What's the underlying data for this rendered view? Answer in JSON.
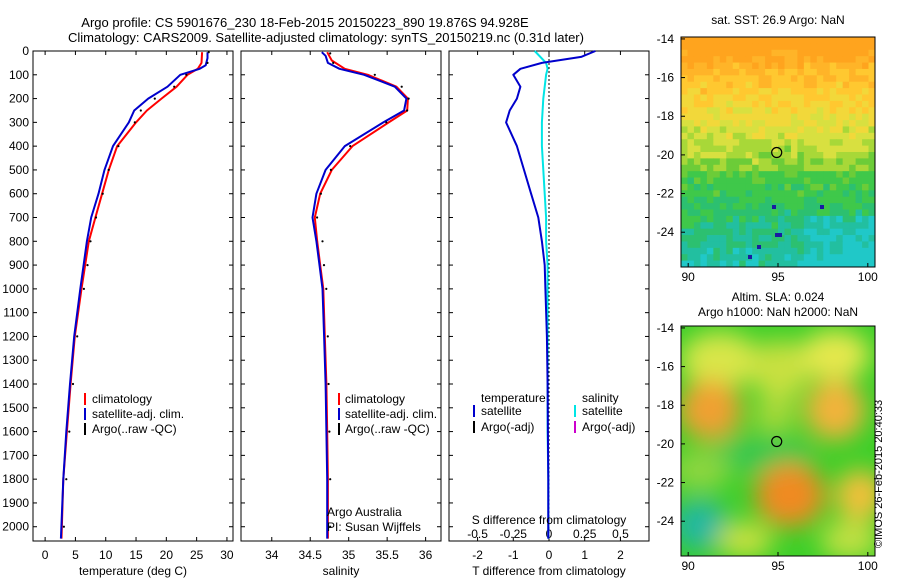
{
  "header": {
    "title_line1": "Argo profile: CS 5901676_230 18-Feb-2015 20150223_890 19.876S 94.928E",
    "title_line2": "Climatology: CARS2009. Satellite-adjusted climatology: synTS_20150219.nc (0.31d later)"
  },
  "stamp": "©IMOS 26-Feb-2015 20:40:33",
  "colors": {
    "climatology": "#ff0000",
    "satellite": "#0000cc",
    "argo": "#000000",
    "salinity_satellite": "#00e5e5",
    "salinity_argo": "#cc00cc"
  },
  "chart_data": [
    {
      "type": "line",
      "id": "temperature",
      "xlabel": "temperature (deg C)",
      "ylabel": "",
      "xlim": [
        -2,
        31
      ],
      "ylim": [
        2060,
        0
      ],
      "xticks": [
        "0",
        "5",
        "10",
        "15",
        "20",
        "25",
        "30"
      ],
      "xtick_values": [
        0,
        5,
        10,
        15,
        20,
        25,
        30
      ],
      "yticks": [
        "0",
        "100",
        "200",
        "300",
        "400",
        "500",
        "600",
        "700",
        "800",
        "900",
        "1000",
        "1100",
        "1200",
        "1300",
        "1400",
        "1500",
        "1600",
        "1700",
        "1800",
        "1900",
        "2000"
      ],
      "ytick_values": [
        0,
        100,
        200,
        300,
        400,
        500,
        600,
        700,
        800,
        900,
        1000,
        1100,
        1200,
        1300,
        1400,
        1500,
        1600,
        1700,
        1800,
        1900,
        2000
      ],
      "legend": [
        "climatology",
        "satellite-adj. clim.",
        "Argo(..raw -QC)"
      ],
      "series": [
        {
          "name": "climatology",
          "depth": [
            5,
            50,
            75,
            100,
            150,
            200,
            250,
            300,
            400,
            500,
            600,
            700,
            800,
            1000,
            1200,
            1400,
            1600,
            1800,
            2050
          ],
          "values": [
            25.9,
            25.8,
            25.2,
            23.5,
            21.7,
            19.2,
            16.8,
            15.0,
            11.9,
            10.5,
            9.4,
            8.3,
            7.2,
            6.0,
            4.9,
            4.2,
            3.6,
            3.0,
            2.7
          ]
        },
        {
          "name": "satellite-adj. clim.",
          "depth": [
            5,
            30,
            60,
            75,
            100,
            150,
            200,
            250,
            300,
            400,
            500,
            600,
            700,
            800,
            1000,
            1200,
            1400,
            1600,
            1800,
            2050
          ],
          "values": [
            26.8,
            26.8,
            26.5,
            25.5,
            22.3,
            20.2,
            17.0,
            14.7,
            13.8,
            11.2,
            9.8,
            8.8,
            7.6,
            6.9,
            5.8,
            4.8,
            4.1,
            3.5,
            3.0,
            2.6
          ]
        },
        {
          "name": "Argo(..raw -QC)",
          "depth": [
            5,
            50,
            100,
            150,
            200,
            250,
            300,
            400,
            500,
            600,
            700,
            800,
            900,
            1000,
            1200,
            1400,
            1600,
            1800,
            2000
          ],
          "values": [
            26.5,
            26.3,
            22.8,
            20.8,
            17.6,
            15.3,
            14.3,
            11.6,
            10.0,
            9.0,
            7.9,
            7.0,
            6.5,
            5.9,
            4.8,
            4.1,
            3.5,
            3.0,
            2.6
          ]
        }
      ]
    },
    {
      "type": "line",
      "id": "salinity",
      "xlabel": "salinity",
      "ylabel": "",
      "xlim": [
        33.6,
        36.2
      ],
      "ylim": [
        2060,
        0
      ],
      "xticks": [
        "34",
        "34.5",
        "35",
        "35.5",
        "36"
      ],
      "xtick_values": [
        34,
        34.5,
        35,
        35.5,
        36
      ],
      "legend": [
        "climatology",
        "satellite-adj. clim.",
        "Argo(..raw -QC)"
      ],
      "annotation": [
        "Argo Australia",
        "PI: Susan Wijffels"
      ],
      "series": [
        {
          "name": "climatology",
          "depth": [
            5,
            40,
            75,
            100,
            150,
            200,
            250,
            300,
            400,
            500,
            600,
            700,
            800,
            900,
            1000,
            1200,
            1400,
            1600,
            1800,
            2050
          ],
          "values": [
            34.72,
            34.78,
            34.95,
            35.25,
            35.62,
            35.77,
            35.76,
            35.52,
            35.05,
            34.78,
            34.63,
            34.56,
            34.59,
            34.63,
            34.67,
            34.69,
            34.71,
            34.72,
            34.73,
            34.73
          ]
        },
        {
          "name": "satellite-adj. clim.",
          "depth": [
            5,
            20,
            50,
            75,
            100,
            150,
            200,
            250,
            300,
            400,
            500,
            600,
            700,
            800,
            900,
            1000,
            1200,
            1400,
            1600,
            1800,
            2050
          ],
          "values": [
            34.65,
            34.7,
            34.73,
            34.88,
            35.2,
            35.6,
            35.75,
            35.72,
            35.45,
            34.95,
            34.7,
            34.58,
            34.53,
            34.58,
            34.62,
            34.66,
            34.68,
            34.7,
            34.71,
            34.72,
            34.72
          ]
        },
        {
          "name": "Argo(..raw -QC)",
          "depth": [
            10,
            50,
            100,
            150,
            200,
            250,
            300,
            400,
            500,
            600,
            700,
            800,
            900,
            1000,
            1200,
            1400,
            1600,
            1800,
            2000
          ],
          "values": [
            34.72,
            34.76,
            35.3,
            35.65,
            35.74,
            35.72,
            35.45,
            34.98,
            34.73,
            34.6,
            34.55,
            34.62,
            34.64,
            34.67,
            34.69,
            34.7,
            34.71,
            34.72,
            34.72
          ]
        }
      ]
    },
    {
      "type": "line",
      "id": "difference",
      "xlabel": "T difference from climatology",
      "xlabel_top": "S difference from climatology",
      "ylim": [
        2060,
        0
      ],
      "xticks_T": [
        "-2",
        "-1",
        "0",
        "1",
        "2"
      ],
      "xtick_values_T": [
        -2,
        -1,
        0,
        1,
        2
      ],
      "xticks_S": [
        "-0.5",
        "-0.25",
        "0",
        "0.25",
        "0.5"
      ],
      "xtick_values_S": [
        -0.5,
        -0.25,
        0,
        0.25,
        0.5
      ],
      "legend_temperature": {
        "title": "temperature",
        "items": [
          "satellite",
          "Argo(-adj)"
        ]
      },
      "legend_salinity": {
        "title": "salinity",
        "items": [
          "satellite",
          "Argo(-adj)"
        ]
      },
      "series": [
        {
          "name": "temperature satellite",
          "depth": [
            0,
            25,
            50,
            75,
            100,
            150,
            200,
            250,
            300,
            400,
            500,
            600,
            700,
            800,
            900,
            1000,
            1200,
            1400,
            1600,
            1800,
            1900,
            2050
          ],
          "values": [
            1.3,
            0.9,
            -0.2,
            -0.8,
            -1.0,
            -0.8,
            -0.9,
            -1.1,
            -1.2,
            -0.9,
            -0.7,
            -0.5,
            -0.3,
            -0.2,
            -0.12,
            -0.1,
            -0.06,
            -0.04,
            -0.03,
            -0.02,
            -0.02,
            -0.02
          ]
        },
        {
          "name": "salinity satellite",
          "depth": [
            0,
            50,
            75,
            100,
            200,
            300,
            400,
            500,
            600,
            700,
            800,
            900,
            1000,
            1200,
            1400,
            1600,
            1800,
            2050
          ],
          "values": [
            -0.1,
            -0.02,
            -0.01,
            -0.02,
            -0.04,
            -0.05,
            -0.05,
            -0.04,
            -0.03,
            -0.02,
            -0.02,
            -0.01,
            -0.01,
            -0.01,
            -0.01,
            -0.01,
            -0.005,
            -0.005
          ]
        },
        {
          "name": "zero reference",
          "depth": [
            0,
            2050
          ],
          "values": [
            0,
            0
          ]
        }
      ]
    },
    {
      "type": "heatmap",
      "id": "sst-map",
      "title": "sat. SST: 26.9 Argo: NaN",
      "xlim": [
        89.6,
        100.4
      ],
      "ylim": [
        -25.8,
        -13.9
      ],
      "xticks": [
        "90",
        "95",
        "100"
      ],
      "xtick_values": [
        90,
        95,
        100
      ],
      "yticks": [
        "-14",
        "-16",
        "-18",
        "-20",
        "-22",
        "-24"
      ],
      "ytick_values": [
        -14,
        -16,
        -18,
        -20,
        -22,
        -24
      ],
      "marker": {
        "lon": 94.928,
        "lat": -19.876
      }
    },
    {
      "type": "heatmap",
      "id": "sla-map",
      "title_line1": "Altim. SLA: 0.024",
      "title_line2": "Argo h1000: NaN h2000: NaN",
      "xlim": [
        89.6,
        100.4
      ],
      "ylim": [
        -25.8,
        -13.9
      ],
      "xticks": [
        "90",
        "95",
        "100"
      ],
      "xtick_values": [
        90,
        95,
        100
      ],
      "yticks": [
        "-14",
        "-16",
        "-18",
        "-20",
        "-22",
        "-24"
      ],
      "ytick_values": [
        -14,
        -16,
        -18,
        -20,
        -22,
        -24
      ],
      "marker": {
        "lon": 94.928,
        "lat": -19.876
      }
    }
  ]
}
